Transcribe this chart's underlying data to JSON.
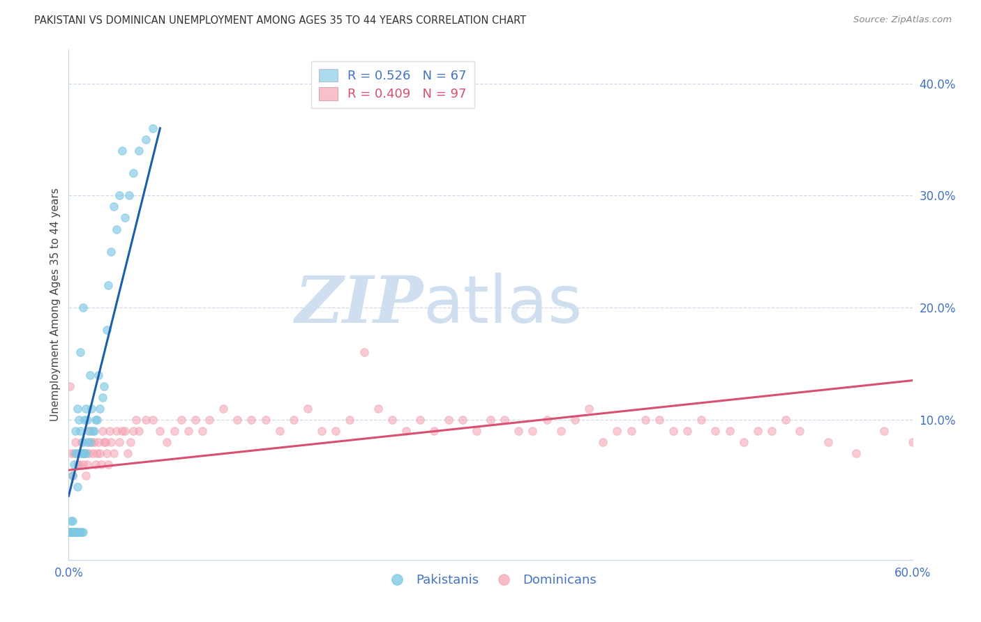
{
  "title": "PAKISTANI VS DOMINICAN UNEMPLOYMENT AMONG AGES 35 TO 44 YEARS CORRELATION CHART",
  "source": "Source: ZipAtlas.com",
  "ylabel": "Unemployment Among Ages 35 to 44 years",
  "right_yticks": [
    "40.0%",
    "30.0%",
    "20.0%",
    "10.0%"
  ],
  "right_ytick_vals": [
    0.4,
    0.3,
    0.2,
    0.1
  ],
  "xmin": 0.0,
  "xmax": 0.6,
  "ymin": -0.025,
  "ymax": 0.43,
  "pakistani_R": "0.526",
  "pakistani_N": "67",
  "dominican_R": "0.409",
  "dominican_N": "97",
  "pakistani_color": "#7ec8e3",
  "dominican_color": "#f4a0b0",
  "trendline_pak_color": "#1a5fa8",
  "trendline_dom_color": "#d94f70",
  "watermark_zip": "ZIP",
  "watermark_atlas": "atlas",
  "watermark_color": "#d0dff0",
  "legend_border_color": "#dddddd",
  "grid_color": "#c8d4e8",
  "pak_x": [
    0.001,
    0.001,
    0.001,
    0.001,
    0.002,
    0.002,
    0.002,
    0.002,
    0.002,
    0.003,
    0.003,
    0.003,
    0.003,
    0.003,
    0.004,
    0.004,
    0.004,
    0.005,
    0.005,
    0.005,
    0.005,
    0.006,
    0.006,
    0.006,
    0.006,
    0.007,
    0.007,
    0.008,
    0.008,
    0.008,
    0.009,
    0.009,
    0.01,
    0.01,
    0.01,
    0.01,
    0.011,
    0.011,
    0.012,
    0.012,
    0.013,
    0.013,
    0.014,
    0.015,
    0.015,
    0.016,
    0.017,
    0.018,
    0.019,
    0.02,
    0.021,
    0.022,
    0.024,
    0.025,
    0.027,
    0.028,
    0.03,
    0.032,
    0.034,
    0.036,
    0.038,
    0.04,
    0.043,
    0.046,
    0.05,
    0.055,
    0.06
  ],
  "pak_y": [
    0.0,
    0.0,
    0.0,
    0.0,
    0.0,
    0.0,
    0.0,
    0.0,
    0.01,
    0.0,
    0.0,
    0.0,
    0.01,
    0.05,
    0.0,
    0.0,
    0.06,
    0.0,
    0.0,
    0.07,
    0.09,
    0.0,
    0.04,
    0.07,
    0.11,
    0.0,
    0.1,
    0.0,
    0.09,
    0.16,
    0.0,
    0.07,
    0.0,
    0.07,
    0.08,
    0.2,
    0.07,
    0.1,
    0.07,
    0.11,
    0.08,
    0.1,
    0.09,
    0.08,
    0.14,
    0.11,
    0.09,
    0.09,
    0.1,
    0.1,
    0.14,
    0.11,
    0.12,
    0.13,
    0.18,
    0.22,
    0.25,
    0.29,
    0.27,
    0.3,
    0.34,
    0.28,
    0.3,
    0.32,
    0.34,
    0.35,
    0.36
  ],
  "dom_x": [
    0.001,
    0.002,
    0.003,
    0.004,
    0.005,
    0.006,
    0.007,
    0.008,
    0.009,
    0.01,
    0.011,
    0.012,
    0.013,
    0.014,
    0.015,
    0.016,
    0.017,
    0.018,
    0.019,
    0.02,
    0.021,
    0.022,
    0.023,
    0.024,
    0.025,
    0.026,
    0.027,
    0.028,
    0.029,
    0.03,
    0.032,
    0.034,
    0.036,
    0.038,
    0.04,
    0.042,
    0.044,
    0.046,
    0.048,
    0.05,
    0.055,
    0.06,
    0.065,
    0.07,
    0.075,
    0.08,
    0.085,
    0.09,
    0.095,
    0.1,
    0.11,
    0.12,
    0.13,
    0.14,
    0.15,
    0.16,
    0.17,
    0.18,
    0.19,
    0.2,
    0.21,
    0.22,
    0.23,
    0.24,
    0.25,
    0.26,
    0.27,
    0.28,
    0.29,
    0.3,
    0.31,
    0.32,
    0.33,
    0.34,
    0.35,
    0.36,
    0.37,
    0.38,
    0.39,
    0.4,
    0.41,
    0.42,
    0.43,
    0.44,
    0.45,
    0.46,
    0.47,
    0.48,
    0.49,
    0.5,
    0.51,
    0.52,
    0.54,
    0.56,
    0.58,
    0.6,
    0.61
  ],
  "dom_y": [
    0.13,
    0.07,
    0.05,
    0.07,
    0.08,
    0.06,
    0.06,
    0.07,
    0.08,
    0.06,
    0.07,
    0.05,
    0.06,
    0.07,
    0.09,
    0.08,
    0.07,
    0.08,
    0.06,
    0.07,
    0.08,
    0.07,
    0.06,
    0.09,
    0.08,
    0.08,
    0.07,
    0.06,
    0.09,
    0.08,
    0.07,
    0.09,
    0.08,
    0.09,
    0.09,
    0.07,
    0.08,
    0.09,
    0.1,
    0.09,
    0.1,
    0.1,
    0.09,
    0.08,
    0.09,
    0.1,
    0.09,
    0.1,
    0.09,
    0.1,
    0.11,
    0.1,
    0.1,
    0.1,
    0.09,
    0.1,
    0.11,
    0.09,
    0.09,
    0.1,
    0.16,
    0.11,
    0.1,
    0.09,
    0.1,
    0.09,
    0.1,
    0.1,
    0.09,
    0.1,
    0.1,
    0.09,
    0.09,
    0.1,
    0.09,
    0.1,
    0.11,
    0.08,
    0.09,
    0.09,
    0.1,
    0.1,
    0.09,
    0.09,
    0.1,
    0.09,
    0.09,
    0.08,
    0.09,
    0.09,
    0.1,
    0.09,
    0.08,
    0.07,
    0.09,
    0.08,
    0.07
  ],
  "pak_trend_x0": 0.0,
  "pak_trend_x1": 0.065,
  "dom_trend_x0": 0.0,
  "dom_trend_x1": 0.6,
  "pak_trend_y0": 0.032,
  "pak_trend_y1": 0.36,
  "dom_trend_y0": 0.055,
  "dom_trend_y1": 0.135
}
